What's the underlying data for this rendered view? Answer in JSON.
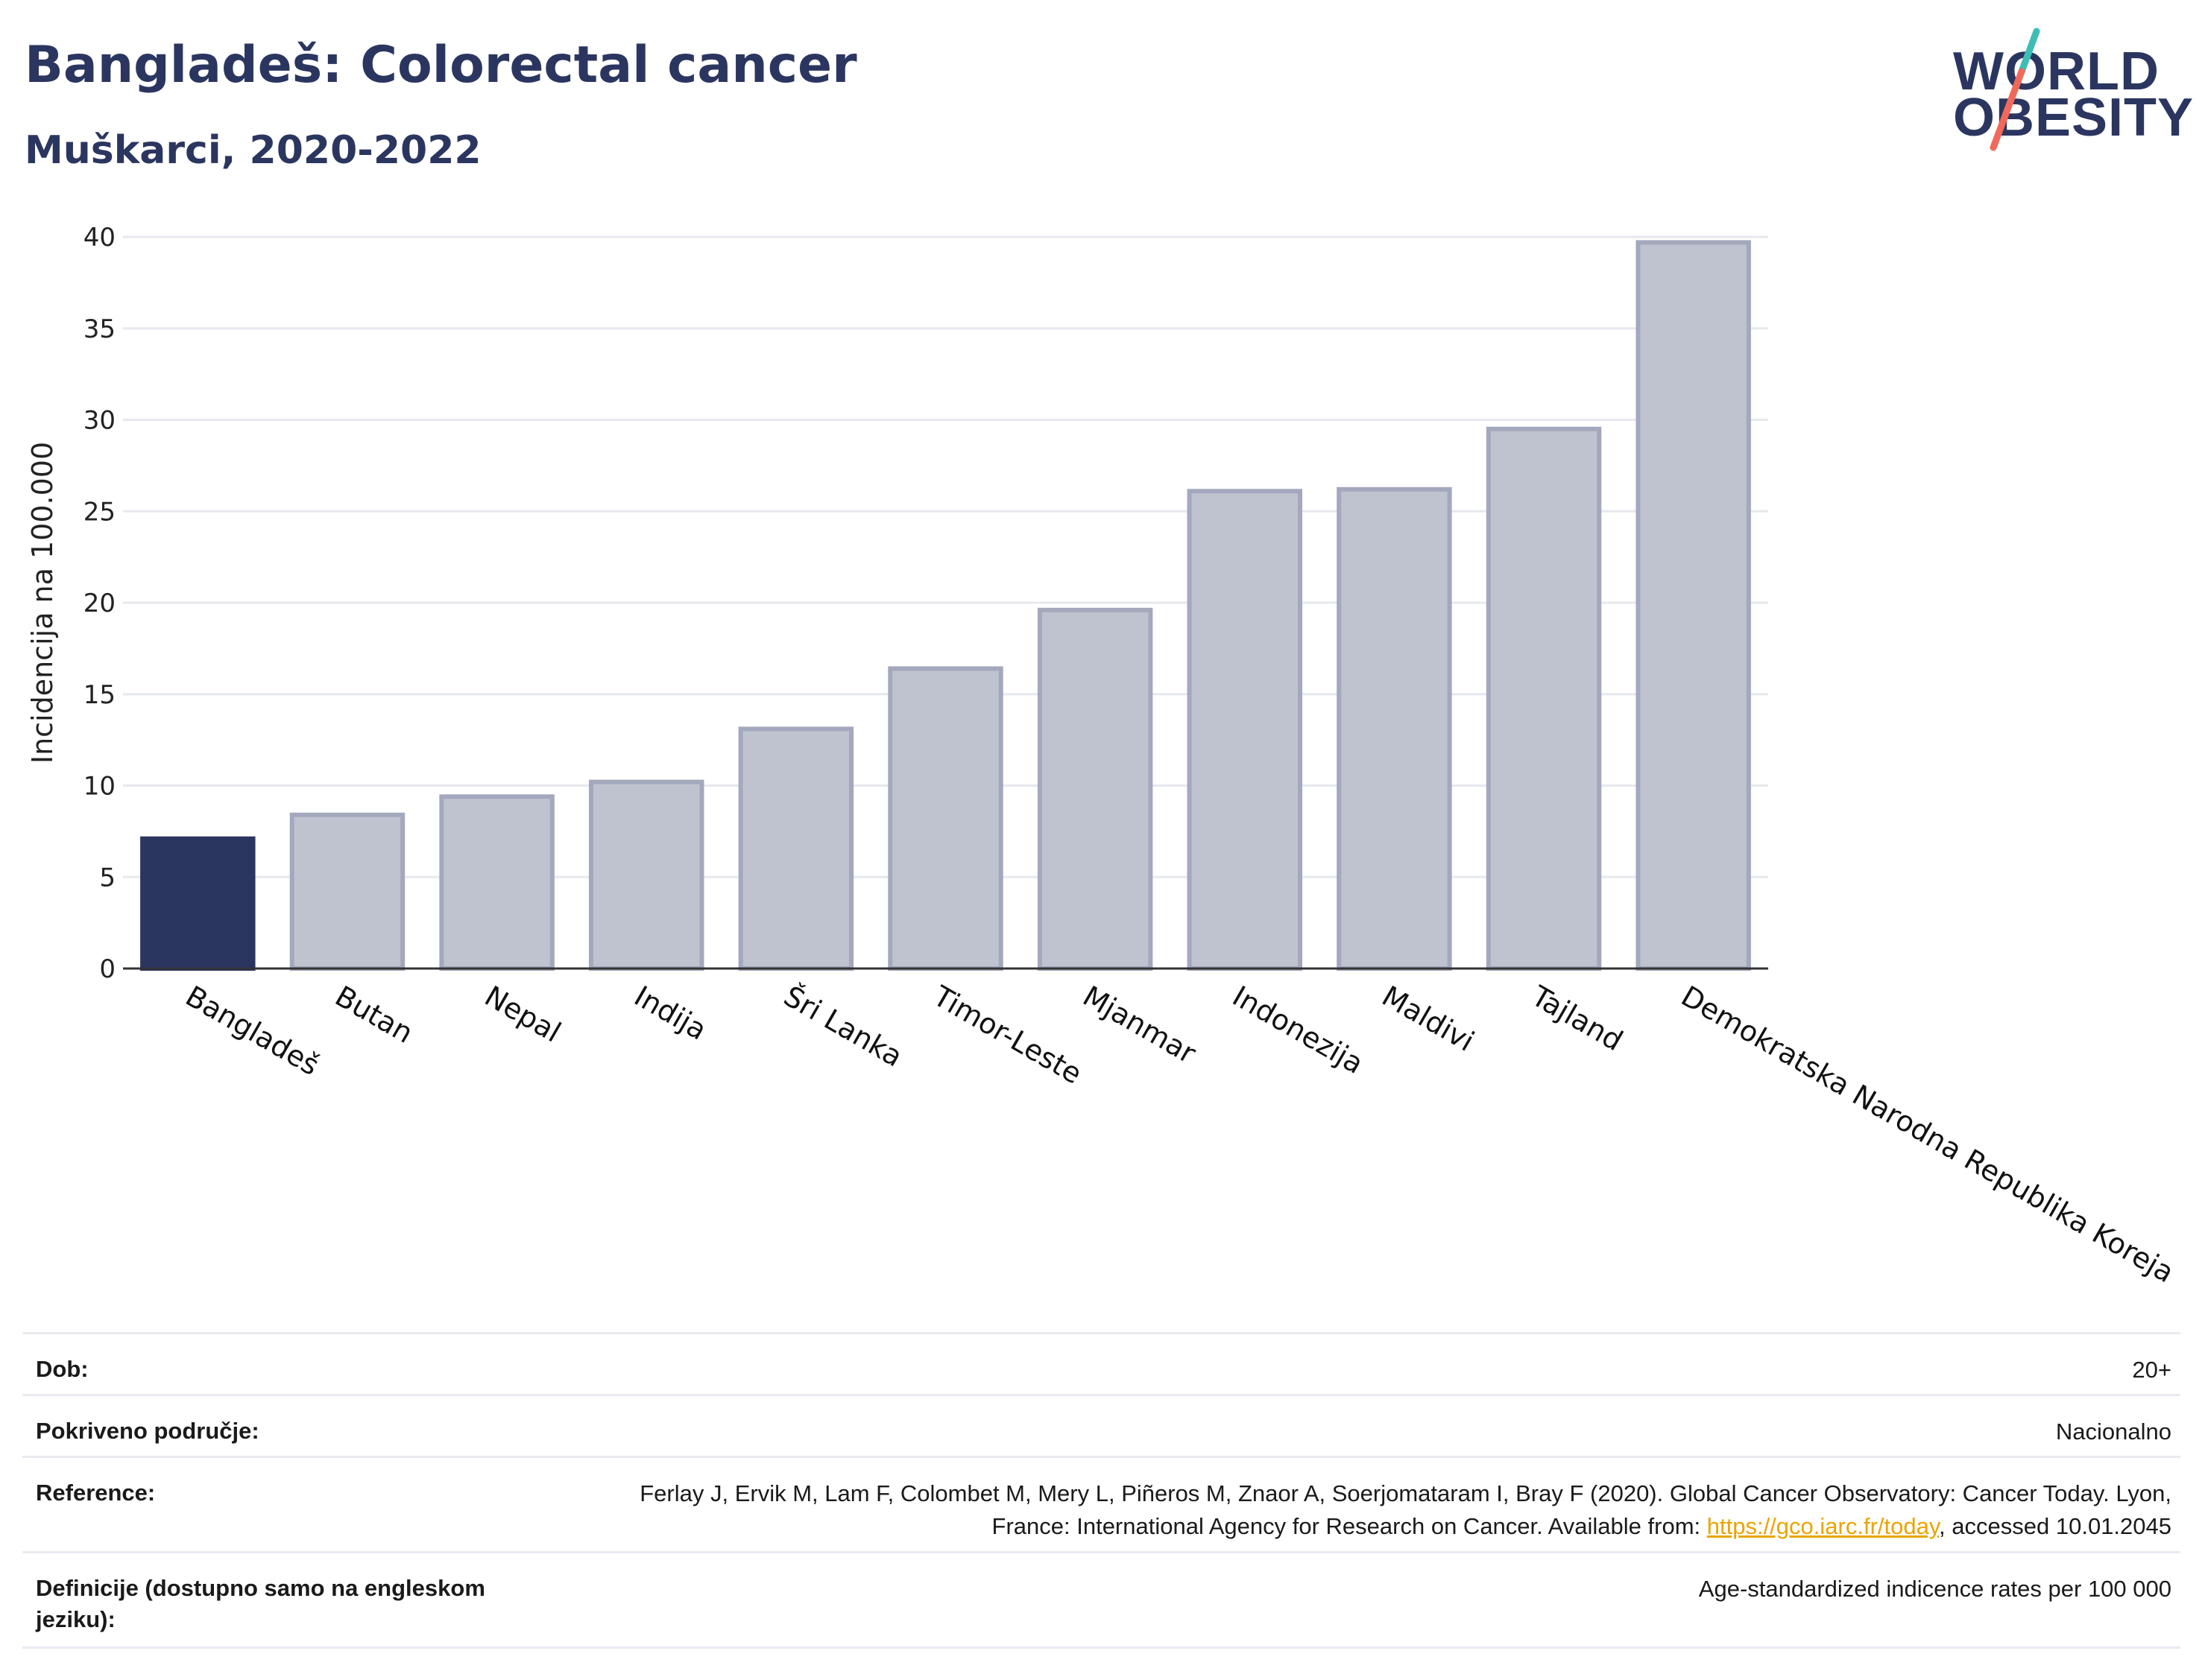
{
  "header": {
    "title": "Bangladeš: Colorectal cancer",
    "subtitle": "Muškarci, 2020-2022"
  },
  "logo": {
    "line1": "WORLD",
    "line2": "OBESITY"
  },
  "chart_data": {
    "type": "bar",
    "title": "Bangladeš: Colorectal cancer",
    "subtitle": "Muškarci, 2020-2022",
    "xlabel": "",
    "ylabel": "Incidencija na 100.000",
    "ylim": [
      0,
      40
    ],
    "yticks": [
      0,
      5,
      10,
      15,
      20,
      25,
      30,
      35,
      40
    ],
    "grid": true,
    "categories": [
      "Bangladeš",
      "Butan",
      "Nepal",
      "Indija",
      "Šri Lanka",
      "Timor-Leste",
      "Mjanmar",
      "Indonezija",
      "Maldivi",
      "Tajland",
      "Demokratska Narodna Republika Koreja"
    ],
    "values": [
      7.1,
      8.4,
      9.4,
      10.2,
      13.1,
      16.4,
      19.6,
      26.1,
      26.2,
      29.5,
      39.7
    ],
    "highlight_index": 0,
    "colors": {
      "highlight": "#2b3660",
      "bar_fill": "#bfc3cf",
      "bar_stroke": "#a3a8bd",
      "grid": "#e6e8ee",
      "axis": "#333333"
    }
  },
  "meta": {
    "age_label": "Dob:",
    "age_value": "20+",
    "coverage_label": "Pokriveno područje:",
    "coverage_value": "Nacionalno",
    "reference_label": "Reference:",
    "reference_text_1": "Ferlay J, Ervik M, Lam F, Colombet M, Mery L, Piñeros M, Znaor A, Soerjomataram I, Bray F (2020). Global Cancer Observatory: Cancer Today. Lyon, France: International Agency for Research on Cancer. Available from: ",
    "reference_link": "https://gco.iarc.fr/today",
    "reference_text_2": ", accessed 10.01.2045",
    "definitions_label": "Definicije (dostupno samo na engleskom jeziku):",
    "definitions_value": "Age-standardized indicence rates per 100 000"
  }
}
